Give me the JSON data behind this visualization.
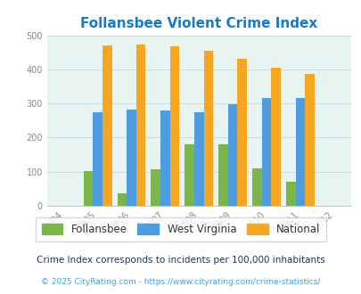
{
  "title": "Follansbee Violent Crime Index",
  "years": [
    2005,
    2006,
    2007,
    2008,
    2009,
    2010,
    2011
  ],
  "follansbee": [
    102,
    37,
    106,
    180,
    179,
    109,
    70
  ],
  "west_virginia": [
    273,
    281,
    279,
    275,
    299,
    316,
    316
  ],
  "national": [
    469,
    474,
    467,
    455,
    432,
    405,
    387
  ],
  "colors": {
    "follansbee": "#7ab648",
    "west_virginia": "#4d9de0",
    "national": "#f5a623"
  },
  "xlim": [
    2003.5,
    2012.5
  ],
  "ylim": [
    0,
    500
  ],
  "yticks": [
    0,
    100,
    200,
    300,
    400,
    500
  ],
  "xticks": [
    2004,
    2005,
    2006,
    2007,
    2008,
    2009,
    2010,
    2011,
    2012
  ],
  "bg_color": "#e8f4f2",
  "bar_width": 0.28,
  "legend_labels": [
    "Follansbee",
    "West Virginia",
    "National"
  ],
  "footnote1": "Crime Index corresponds to incidents per 100,000 inhabitants",
  "footnote2": "© 2025 CityRating.com - https://www.cityrating.com/crime-statistics/",
  "title_color": "#1a7abf",
  "footnote1_color": "#1a3a5c",
  "footnote2_color": "#4d9de0"
}
